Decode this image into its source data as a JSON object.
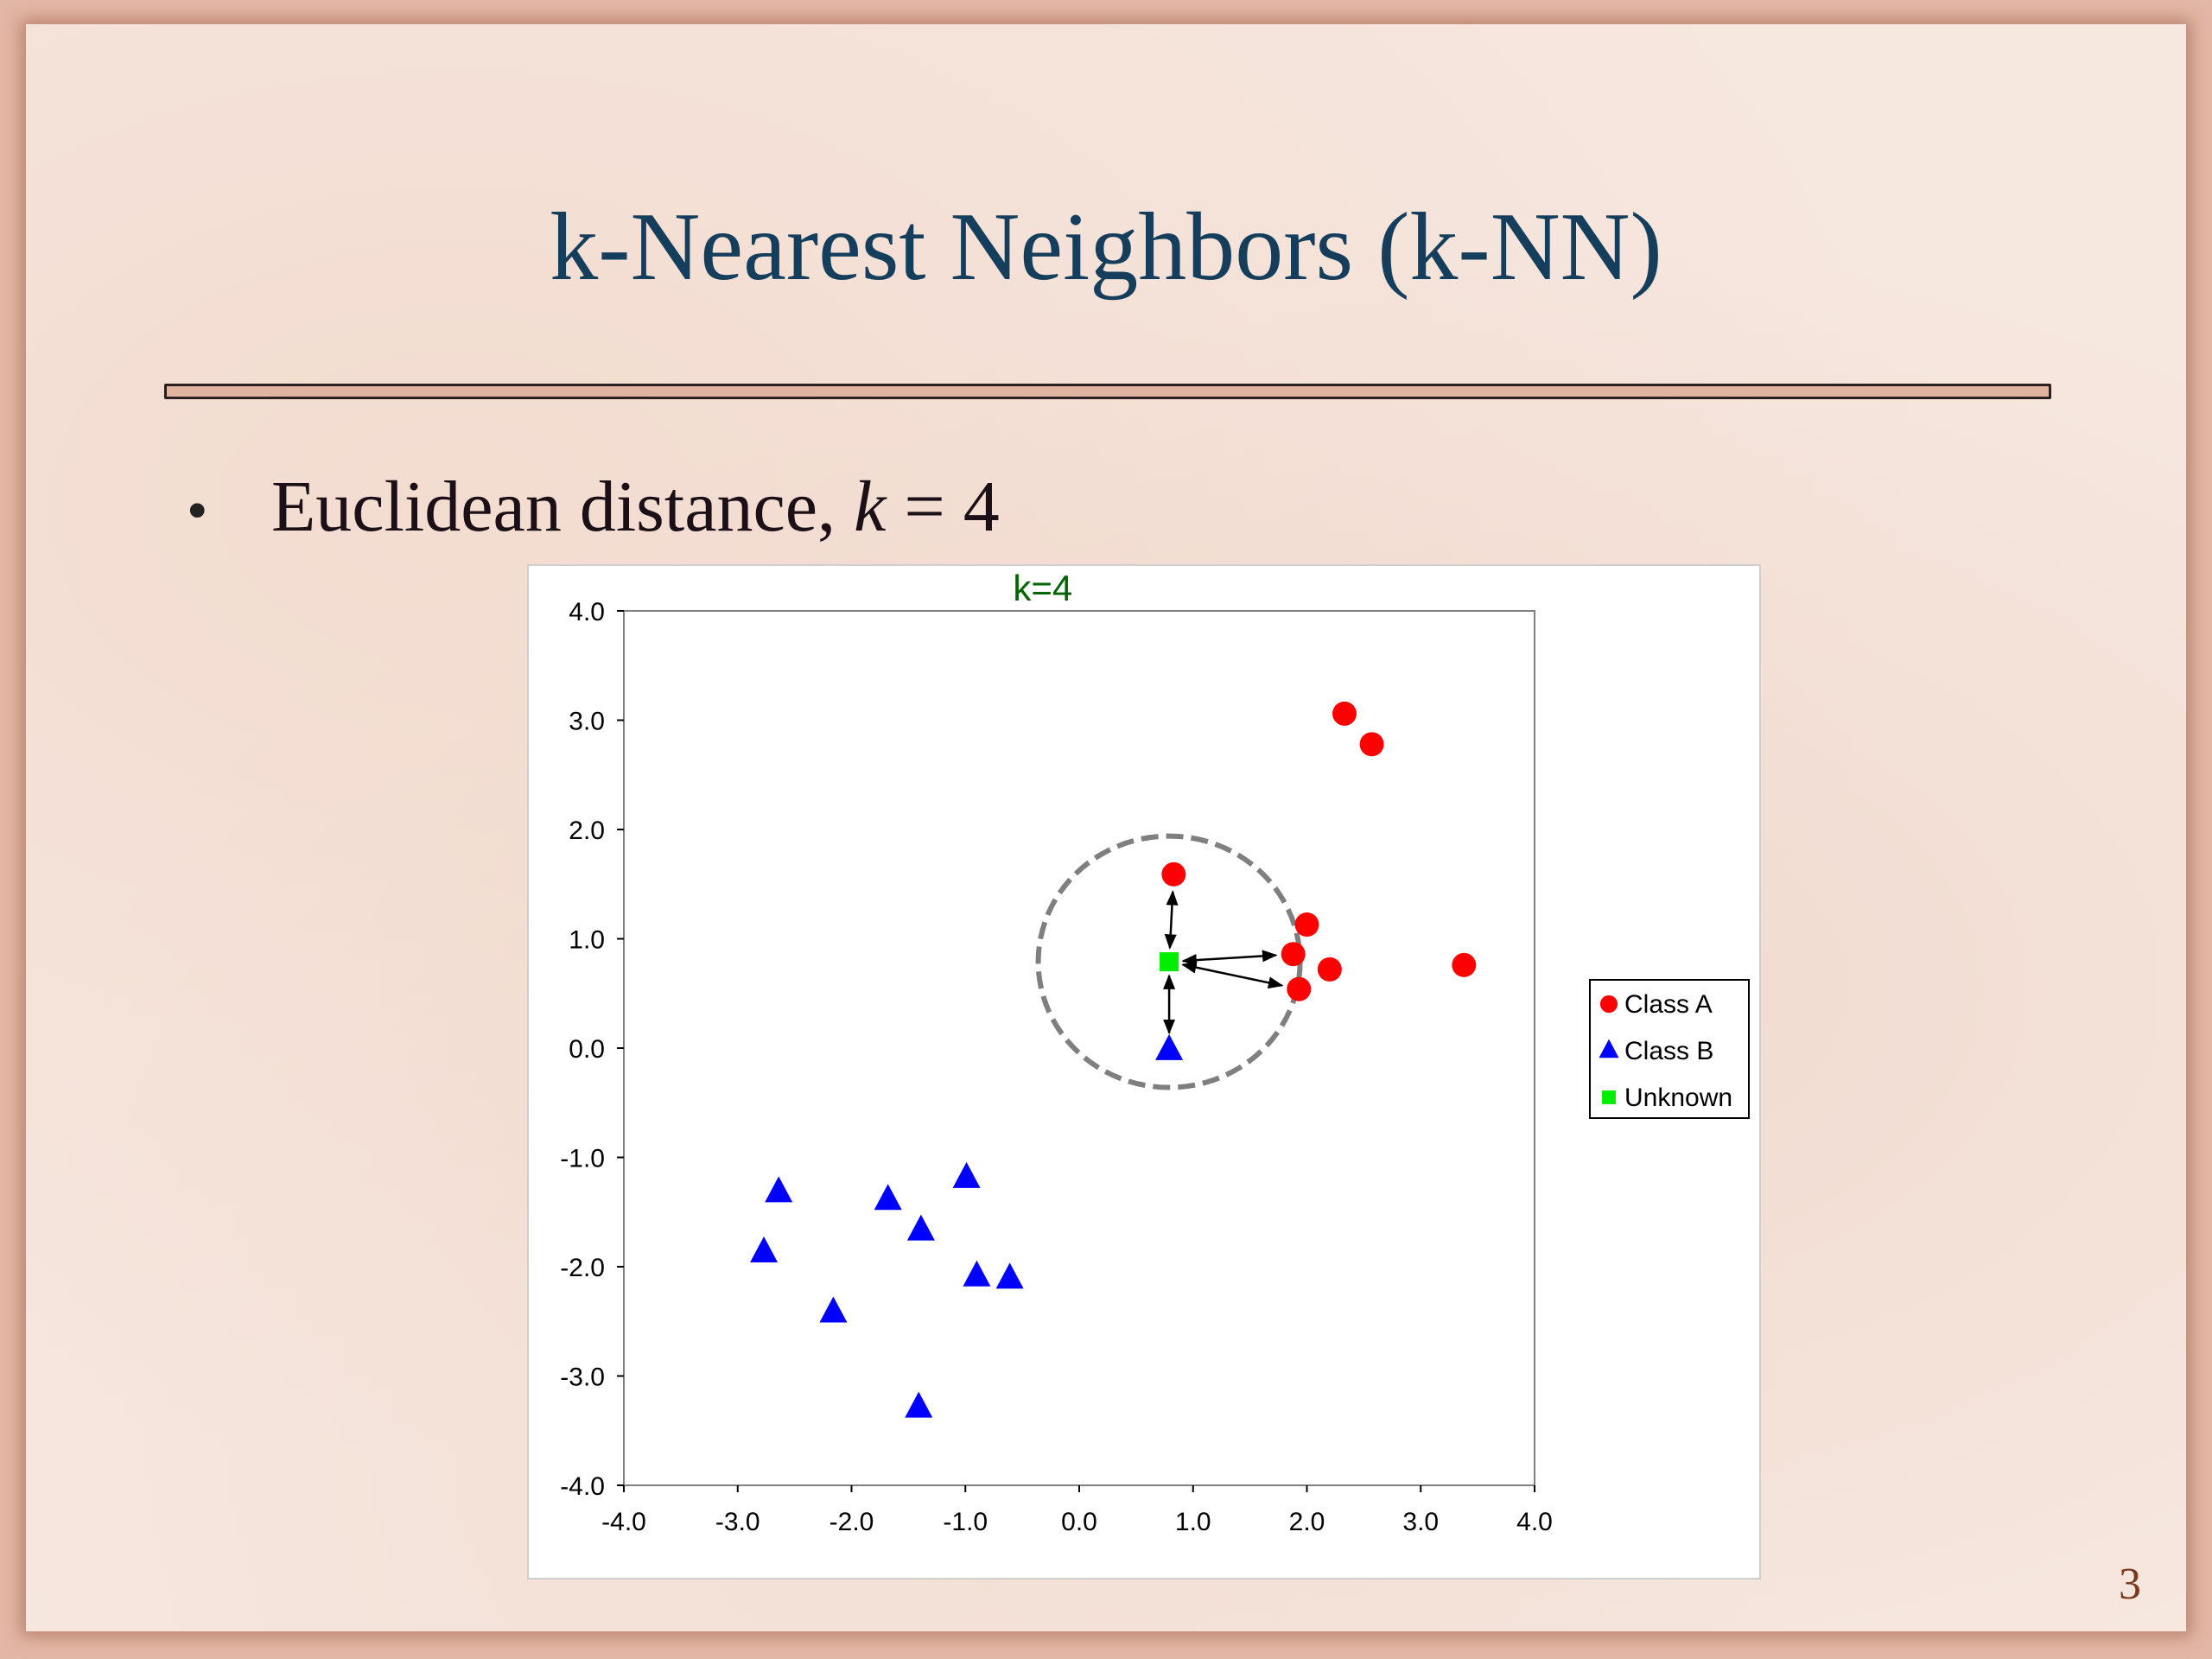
{
  "slide": {
    "title": "k-Nearest Neighbors (k-NN)",
    "bullet": {
      "symbol": "•",
      "text_before": "Euclidean distance, ",
      "text_var": "k",
      "text_after": " = 4"
    },
    "page_number": "3"
  },
  "colors": {
    "title": "#153e5c",
    "class_a": "#ff0000",
    "class_b": "#0000ff",
    "unknown": "#00ee00",
    "chart_title": "#006400",
    "circle": "#7f7f7f"
  },
  "chart_data": {
    "type": "scatter",
    "title": "k=4",
    "xlabel": "",
    "ylabel": "",
    "xlim": [
      -4.0,
      4.0
    ],
    "ylim": [
      -4.0,
      4.0
    ],
    "xticks": [
      "-4.0",
      "-3.0",
      "-2.0",
      "-1.0",
      "0.0",
      "1.0",
      "2.0",
      "3.0",
      "4.0"
    ],
    "yticks": [
      "4.0",
      "3.0",
      "2.0",
      "1.0",
      "0.0",
      "-1.0",
      "-2.0",
      "-3.0",
      "-4.0"
    ],
    "grid": false,
    "legend": "right",
    "series": [
      {
        "name": "Class A",
        "marker": "circle",
        "points": [
          [
            2.33,
            3.06
          ],
          [
            2.57,
            2.78
          ],
          [
            0.83,
            1.59
          ],
          [
            2.0,
            1.13
          ],
          [
            1.88,
            0.86
          ],
          [
            2.2,
            0.72
          ],
          [
            1.93,
            0.54
          ],
          [
            3.38,
            0.76
          ]
        ]
      },
      {
        "name": "Class B",
        "marker": "triangle",
        "points": [
          [
            0.79,
            -0.02
          ],
          [
            -2.64,
            -1.32
          ],
          [
            -2.77,
            -1.87
          ],
          [
            -1.68,
            -1.39
          ],
          [
            -0.99,
            -1.19
          ],
          [
            -1.39,
            -1.67
          ],
          [
            -0.9,
            -2.09
          ],
          [
            -0.61,
            -2.11
          ],
          [
            -2.16,
            -2.42
          ],
          [
            -1.41,
            -3.29
          ]
        ]
      },
      {
        "name": "Unknown",
        "marker": "square",
        "points": [
          [
            0.79,
            0.79
          ]
        ]
      }
    ],
    "neighborhood": {
      "center": [
        0.79,
        0.79
      ],
      "radius": 1.15
    },
    "neighbor_arrows": [
      [
        0.83,
        1.59
      ],
      [
        1.88,
        0.86
      ],
      [
        1.93,
        0.54
      ],
      [
        0.79,
        -0.02
      ]
    ]
  }
}
